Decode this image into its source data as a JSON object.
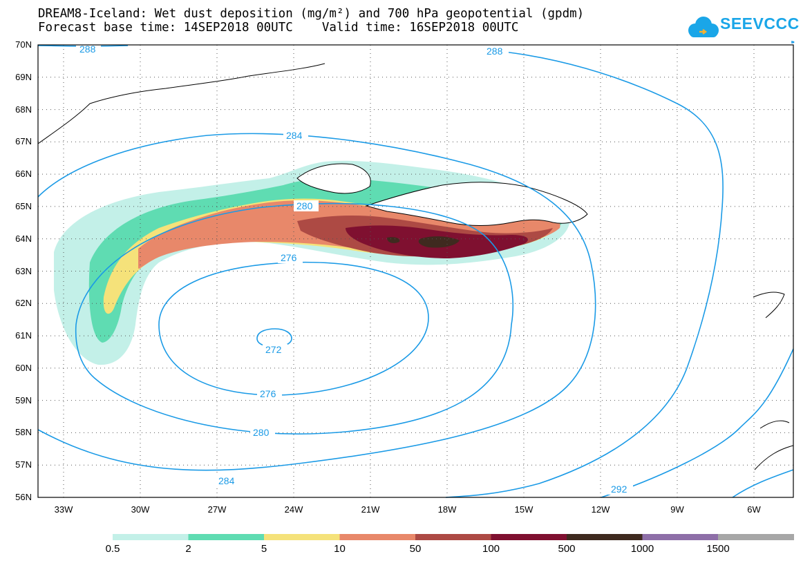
{
  "header": {
    "title_line1": "DREAM8-Iceland: Wet dust deposition (mg/m²) and 700 hPa geopotential (gpdm)",
    "title_line2": "Forecast base time: 14SEP2018 00UTC    Valid time: 16SEP2018 00UTC"
  },
  "logo": {
    "text": "SEEVCCC",
    "icon": "cloud-icon",
    "color": "#1aa6e8"
  },
  "axes": {
    "lat_labels": [
      "70N",
      "69N",
      "68N",
      "67N",
      "66N",
      "65N",
      "64N",
      "63N",
      "62N",
      "61N",
      "60N",
      "59N",
      "58N",
      "57N",
      "56N"
    ],
    "lon_labels": [
      "33W",
      "30W",
      "27W",
      "24W",
      "21W",
      "18W",
      "15W",
      "12W",
      "9W",
      "6W"
    ]
  },
  "contours": {
    "color": "#1a9ae6",
    "labels": [
      "288",
      "288",
      "284",
      "280",
      "276",
      "272",
      "276",
      "280",
      "284",
      "292"
    ]
  },
  "legend": {
    "labels": [
      "0.5",
      "2",
      "5",
      "10",
      "50",
      "100",
      "500",
      "1000",
      "1500"
    ],
    "colors": [
      "#c3f0e8",
      "#5fdcb2",
      "#f5e27a",
      "#e8886a",
      "#ad4a44",
      "#7f1030",
      "#3f2a1f",
      "#8e6fa8",
      "#a7a7a7"
    ]
  }
}
